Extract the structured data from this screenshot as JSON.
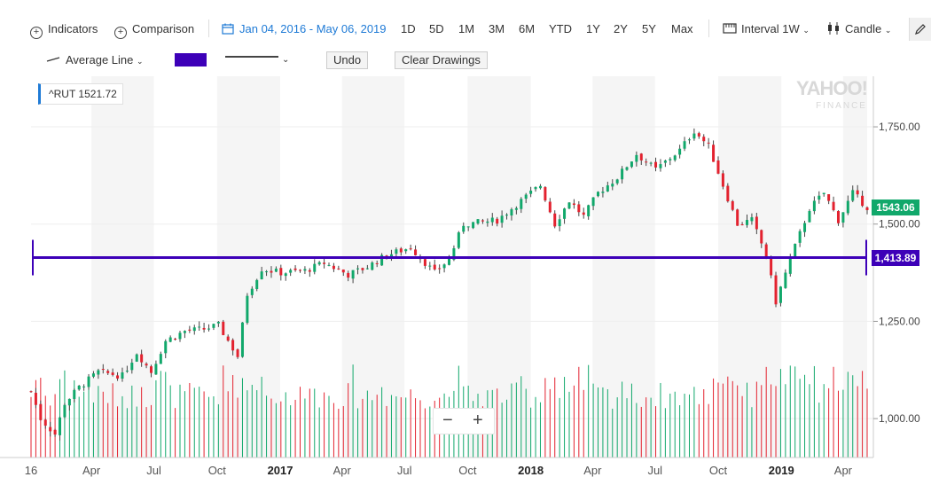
{
  "toolbar": {
    "indicators": "Indicators",
    "comparison": "Comparison",
    "date_range": "Jan 04, 2016 - May 06, 2019",
    "ranges": [
      "1D",
      "5D",
      "1M",
      "3M",
      "6M",
      "YTD",
      "1Y",
      "2Y",
      "5Y",
      "Max"
    ],
    "interval_label": "Interval",
    "interval_value": "1W",
    "chart_type": "Candle"
  },
  "drawing_toolbar": {
    "line_type": "Average Line",
    "swatch_color": "#3d00b8",
    "undo": "Undo",
    "clear": "Clear Drawings"
  },
  "legend": {
    "symbol": "^RUT",
    "value": "1521.72"
  },
  "watermark": {
    "brand": "YAHOO!",
    "sub": "FINANCE"
  },
  "price_badges": {
    "last": "1543.06",
    "last_color": "#11a86b",
    "line": "1,413.89",
    "line_color": "#3d00b8"
  },
  "zoom": {
    "minus": "−",
    "plus": "+"
  },
  "colors": {
    "up": "#11a86b",
    "down": "#e3222f",
    "line": "#3d00b8",
    "shade": "#f5f5f5"
  },
  "chart_data": {
    "type": "candlestick",
    "symbol": "^RUT",
    "interval": "1W",
    "x_range": [
      "2016-01-04",
      "2019-05-06"
    ],
    "ylim": [
      900,
      1880
    ],
    "y_ticks": [
      1000,
      1250,
      1500,
      1750
    ],
    "y_tick_labels": [
      "1,000.00",
      "1,250.00",
      "1,500.00",
      "1,750.00"
    ],
    "x_ticks": [
      {
        "label": "16",
        "date": "2016-01-04"
      },
      {
        "label": "Apr",
        "date": "2016-04-01"
      },
      {
        "label": "Jul",
        "date": "2016-07-01"
      },
      {
        "label": "Oct",
        "date": "2016-10-01"
      },
      {
        "label": "2017",
        "date": "2017-01-01",
        "bold": true
      },
      {
        "label": "Apr",
        "date": "2017-04-01"
      },
      {
        "label": "Jul",
        "date": "2017-07-01"
      },
      {
        "label": "Oct",
        "date": "2017-10-01"
      },
      {
        "label": "2018",
        "date": "2018-01-01",
        "bold": true
      },
      {
        "label": "Apr",
        "date": "2018-04-01"
      },
      {
        "label": "Jul",
        "date": "2018-07-01"
      },
      {
        "label": "Oct",
        "date": "2018-10-01"
      },
      {
        "label": "2019",
        "date": "2019-01-01",
        "bold": true
      },
      {
        "label": "Apr",
        "date": "2019-04-01"
      }
    ],
    "horizontal_line": 1413.89,
    "last_price": 1543.06,
    "close_path": [
      [
        "2016-01-04",
        1070
      ],
      [
        "2016-01-18",
        1000
      ],
      [
        "2016-02-08",
        960
      ],
      [
        "2016-02-22",
        1040
      ],
      [
        "2016-03-14",
        1080
      ],
      [
        "2016-04-11",
        1120
      ],
      [
        "2016-05-16",
        1110
      ],
      [
        "2016-06-06",
        1170
      ],
      [
        "2016-06-27",
        1120
      ],
      [
        "2016-07-18",
        1200
      ],
      [
        "2016-08-15",
        1225
      ],
      [
        "2016-09-12",
        1230
      ],
      [
        "2016-10-03",
        1240
      ],
      [
        "2016-10-31",
        1160
      ],
      [
        "2016-11-14",
        1320
      ],
      [
        "2016-12-05",
        1385
      ],
      [
        "2017-01-02",
        1375
      ],
      [
        "2017-02-06",
        1380
      ],
      [
        "2017-03-06",
        1400
      ],
      [
        "2017-04-10",
        1370
      ],
      [
        "2017-05-08",
        1390
      ],
      [
        "2017-06-05",
        1420
      ],
      [
        "2017-07-10",
        1440
      ],
      [
        "2017-08-14",
        1375
      ],
      [
        "2017-09-04",
        1410
      ],
      [
        "2017-09-25",
        1500
      ],
      [
        "2017-10-23",
        1505
      ],
      [
        "2017-11-13",
        1510
      ],
      [
        "2017-12-11",
        1550
      ],
      [
        "2018-01-15",
        1600
      ],
      [
        "2018-02-05",
        1500
      ],
      [
        "2018-02-26",
        1560
      ],
      [
        "2018-03-19",
        1520
      ],
      [
        "2018-04-09",
        1580
      ],
      [
        "2018-05-07",
        1620
      ],
      [
        "2018-06-04",
        1680
      ],
      [
        "2018-07-02",
        1640
      ],
      [
        "2018-08-06",
        1690
      ],
      [
        "2018-08-27",
        1740
      ],
      [
        "2018-09-17",
        1700
      ],
      [
        "2018-10-08",
        1600
      ],
      [
        "2018-10-29",
        1500
      ],
      [
        "2018-11-19",
        1510
      ],
      [
        "2018-12-10",
        1420
      ],
      [
        "2018-12-24",
        1300
      ],
      [
        "2019-01-14",
        1410
      ],
      [
        "2019-02-11",
        1540
      ],
      [
        "2019-03-04",
        1580
      ],
      [
        "2019-03-25",
        1510
      ],
      [
        "2019-04-15",
        1580
      ],
      [
        "2019-05-06",
        1543
      ]
    ],
    "volume_note": "Weekly volume bars (green/red) shown along bottom"
  }
}
